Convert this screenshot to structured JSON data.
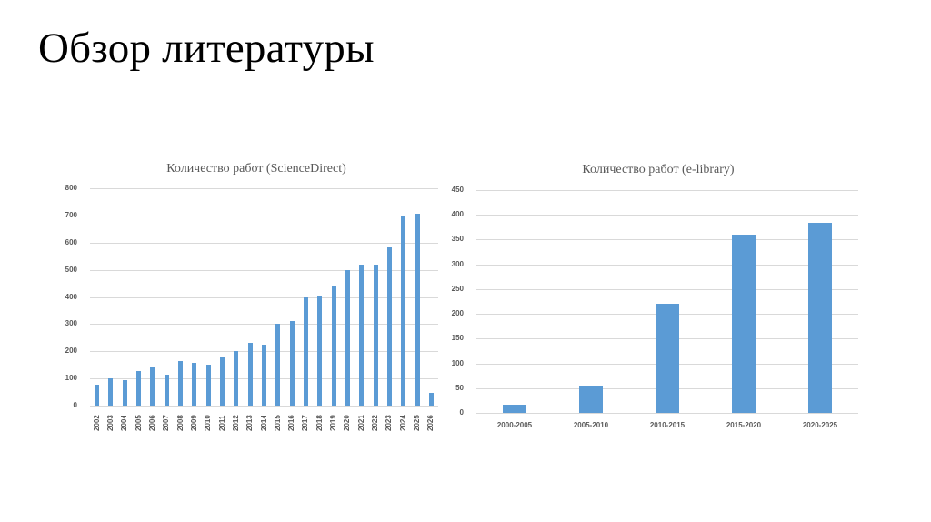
{
  "slide": {
    "title": "Обзор литературы"
  },
  "chart_data": [
    {
      "type": "bar",
      "title": "Количество работ (ScienceDirect)",
      "xlabel": "",
      "ylabel": "",
      "categories": [
        "2002",
        "2003",
        "2004",
        "2005",
        "2006",
        "2007",
        "2008",
        "2009",
        "2010",
        "2011",
        "2012",
        "2013",
        "2014",
        "2015",
        "2016",
        "2017",
        "2018",
        "2019",
        "2020",
        "2021",
        "2022",
        "2023",
        "2024",
        "2025",
        "2026"
      ],
      "values": [
        76,
        100,
        93,
        126,
        141,
        114,
        164,
        158,
        150,
        178,
        200,
        232,
        224,
        300,
        311,
        398,
        403,
        439,
        500,
        520,
        520,
        584,
        700,
        705,
        46
      ],
      "yticks": [
        0,
        100,
        200,
        300,
        400,
        500,
        600,
        700,
        800
      ],
      "ylim": [
        0,
        800
      ],
      "grid": true,
      "legend": "none",
      "bar_color": "#5b9bd5"
    },
    {
      "type": "bar",
      "title": "Количество работ (e-library)",
      "xlabel": "",
      "ylabel": "",
      "categories": [
        "2000-2005",
        "2005-2010",
        "2010-2015",
        "2015-2020",
        "2020-2025"
      ],
      "values": [
        17,
        55,
        220,
        360,
        384
      ],
      "yticks": [
        0,
        50,
        100,
        150,
        200,
        250,
        300,
        350,
        400,
        450
      ],
      "ylim": [
        0,
        450
      ],
      "grid": true,
      "legend": "none",
      "bar_color": "#5b9bd5"
    }
  ]
}
